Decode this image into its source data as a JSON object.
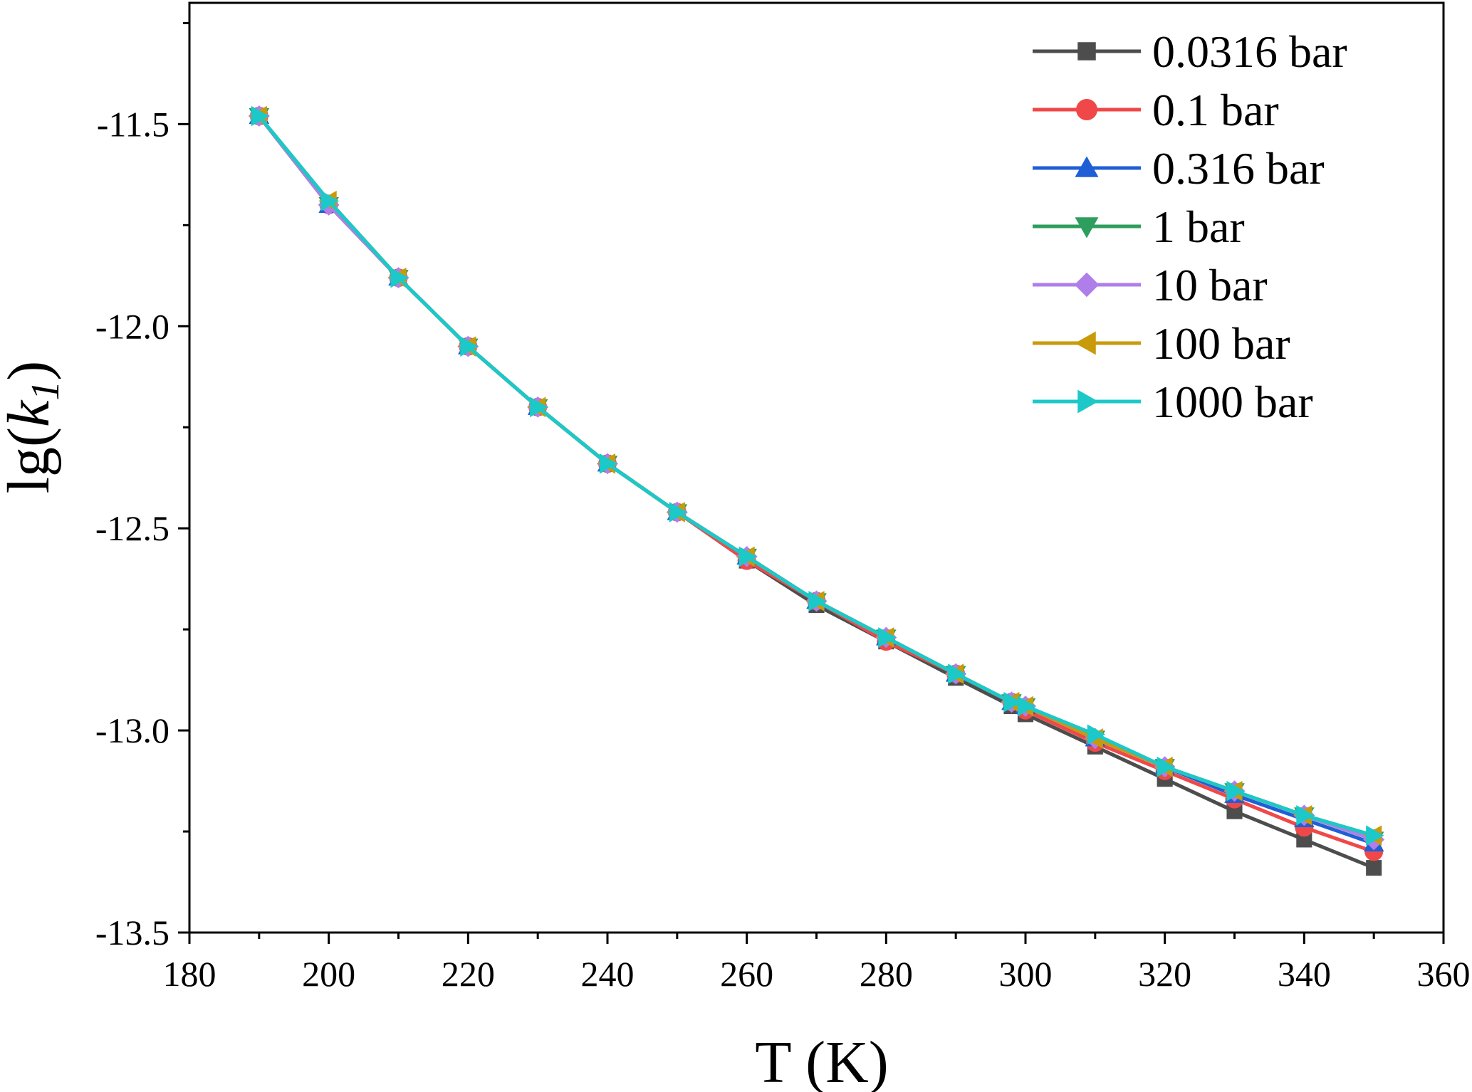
{
  "chart_data": {
    "type": "line",
    "xlabel": "T (K)",
    "ylabel_main": "lg(",
    "ylabel_var": "k",
    "ylabel_sub": "1",
    "ylabel_close": ")",
    "xlim": [
      180,
      360
    ],
    "ylim": [
      -13.5,
      -11.2
    ],
    "xticks": [
      180,
      200,
      220,
      240,
      260,
      280,
      300,
      320,
      340,
      360
    ],
    "yticks": [
      -13.5,
      -13.0,
      -12.5,
      -12.0,
      -11.5
    ],
    "ytick_labels": [
      "-13.5",
      "-13.0",
      "-12.5",
      "-12.0",
      "-11.5"
    ],
    "grid": false,
    "legend_position": "top-right",
    "x": [
      190,
      200,
      210,
      220,
      230,
      240,
      250,
      260,
      270,
      280,
      290,
      298,
      300,
      310,
      320,
      330,
      340,
      350
    ],
    "series": [
      {
        "name": "0.0316 bar",
        "color": "#4d4d4d",
        "marker": "square",
        "values": [
          -11.48,
          -11.7,
          -11.88,
          -12.05,
          -12.2,
          -12.34,
          -12.46,
          -12.58,
          -12.69,
          -12.78,
          -12.87,
          -12.94,
          -12.96,
          -13.04,
          -13.12,
          -13.2,
          -13.27,
          -13.34
        ]
      },
      {
        "name": "0.1 bar",
        "color": "#f04848",
        "marker": "circle",
        "values": [
          -11.48,
          -11.7,
          -11.88,
          -12.05,
          -12.2,
          -12.34,
          -12.46,
          -12.58,
          -12.68,
          -12.78,
          -12.86,
          -12.93,
          -12.95,
          -13.03,
          -13.1,
          -13.17,
          -13.24,
          -13.3
        ]
      },
      {
        "name": "0.316 bar",
        "color": "#1f5fd6",
        "marker": "triangle-up",
        "values": [
          -11.48,
          -11.7,
          -11.88,
          -12.05,
          -12.2,
          -12.34,
          -12.46,
          -12.57,
          -12.68,
          -12.77,
          -12.86,
          -12.93,
          -12.94,
          -13.02,
          -13.09,
          -13.16,
          -13.22,
          -13.28
        ]
      },
      {
        "name": "1 bar",
        "color": "#2e9e5e",
        "marker": "triangle-down",
        "values": [
          -11.48,
          -11.7,
          -11.88,
          -12.05,
          -12.2,
          -12.34,
          -12.46,
          -12.57,
          -12.68,
          -12.77,
          -12.86,
          -12.93,
          -12.94,
          -13.02,
          -13.09,
          -13.15,
          -13.21,
          -13.27
        ]
      },
      {
        "name": "10 bar",
        "color": "#b07ee8",
        "marker": "diamond",
        "values": [
          -11.48,
          -11.7,
          -11.88,
          -12.05,
          -12.2,
          -12.34,
          -12.46,
          -12.57,
          -12.68,
          -12.77,
          -12.86,
          -12.93,
          -12.94,
          -13.02,
          -13.09,
          -13.15,
          -13.21,
          -13.27
        ]
      },
      {
        "name": "100 bar",
        "color": "#c99a0a",
        "marker": "triangle-left",
        "values": [
          -11.48,
          -11.69,
          -11.88,
          -12.05,
          -12.2,
          -12.34,
          -12.46,
          -12.57,
          -12.68,
          -12.77,
          -12.86,
          -12.93,
          -12.94,
          -13.02,
          -13.09,
          -13.15,
          -13.21,
          -13.26
        ]
      },
      {
        "name": "1000 bar",
        "color": "#1cc8c8",
        "marker": "triangle-right",
        "values": [
          -11.48,
          -11.69,
          -11.88,
          -12.05,
          -12.2,
          -12.34,
          -12.46,
          -12.57,
          -12.68,
          -12.77,
          -12.86,
          -12.93,
          -12.94,
          -13.01,
          -13.09,
          -13.15,
          -13.21,
          -13.26
        ]
      }
    ]
  }
}
